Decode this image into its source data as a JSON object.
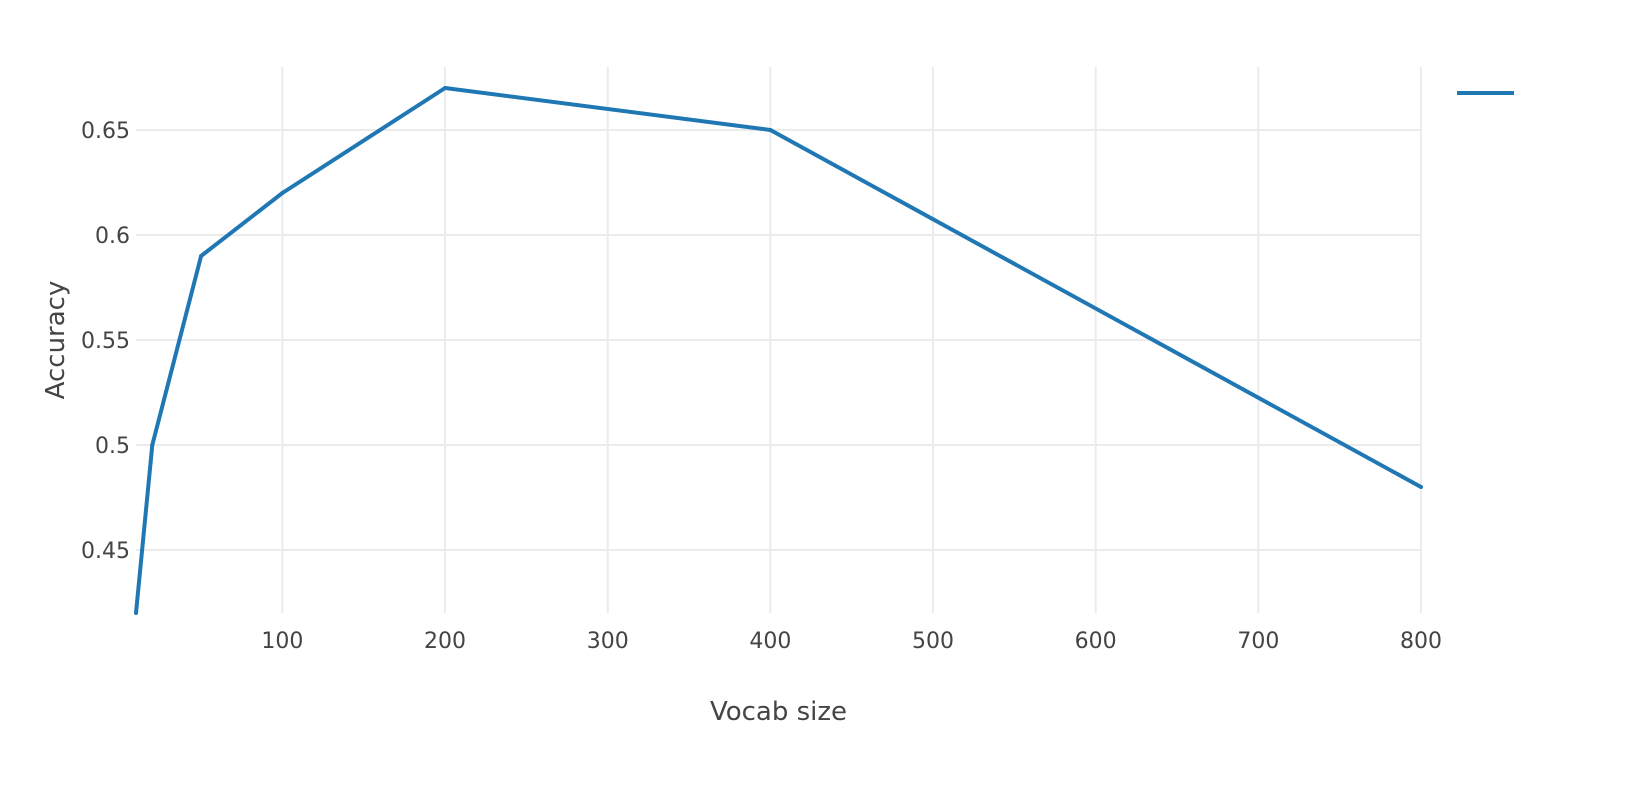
{
  "chart_data": {
    "type": "line",
    "title": "",
    "xlabel": "Vocab size",
    "ylabel": "Accuracy",
    "xlim": [
      10,
      800
    ],
    "ylim": [
      0.42,
      0.68
    ],
    "xticks": [
      100,
      200,
      300,
      400,
      500,
      600,
      700,
      800
    ],
    "yticks": [
      0.45,
      0.5,
      0.55,
      0.6,
      0.65
    ],
    "grid": true,
    "legend": {
      "position": "top-right",
      "entries": [
        ""
      ]
    },
    "series": [
      {
        "name": "",
        "color": "#1f77b4",
        "x": [
          10,
          20,
          50,
          100,
          200,
          400,
          800
        ],
        "y": [
          0.42,
          0.5,
          0.59,
          0.62,
          0.67,
          0.65,
          0.48
        ]
      }
    ]
  }
}
